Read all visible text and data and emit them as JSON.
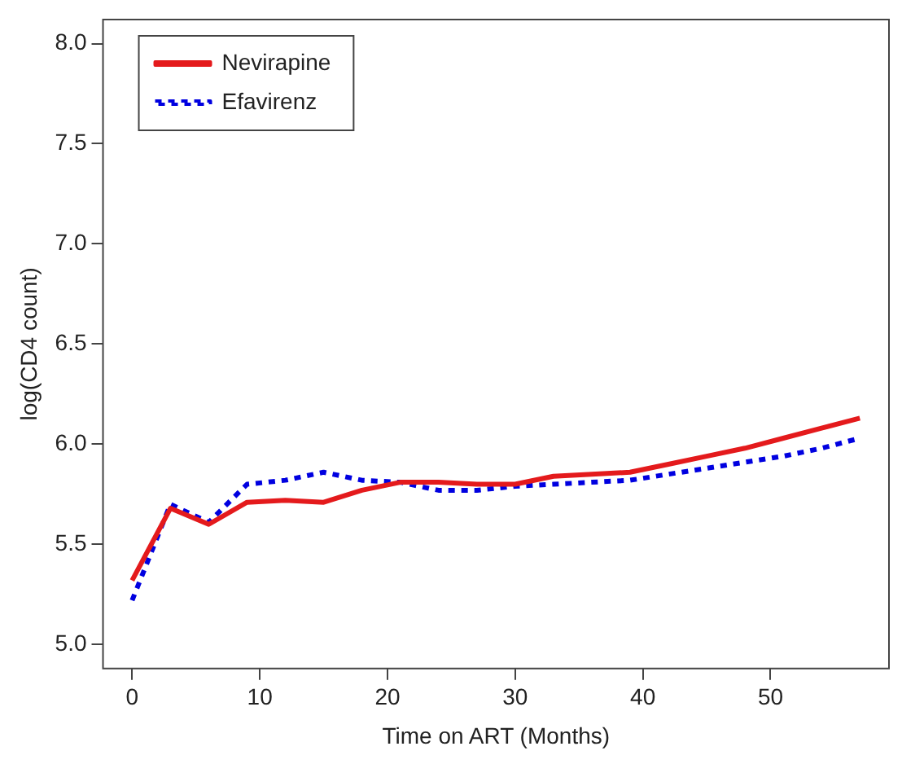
{
  "chart_data": {
    "type": "line",
    "xlabel": "Time on ART (Months)",
    "ylabel": "log(CD4 count)",
    "x": [
      0,
      3,
      6,
      9,
      12,
      15,
      18,
      21,
      24,
      27,
      30,
      33,
      36,
      39,
      42,
      45,
      48,
      51,
      54,
      57
    ],
    "series": [
      {
        "name": "Nevirapine",
        "color": "#e41a1c",
        "line_style": "solid",
        "values": [
          5.32,
          5.68,
          5.6,
          5.71,
          5.72,
          5.71,
          5.77,
          5.81,
          5.81,
          5.8,
          5.8,
          5.84,
          5.85,
          5.86,
          5.9,
          5.94,
          5.98,
          6.03,
          6.08,
          6.13
        ]
      },
      {
        "name": "Efavirenz",
        "color": "#0000e0",
        "line_style": "dotted",
        "values": [
          5.22,
          5.7,
          5.61,
          5.8,
          5.82,
          5.86,
          5.82,
          5.81,
          5.77,
          5.77,
          5.79,
          5.8,
          5.81,
          5.82,
          5.85,
          5.88,
          5.91,
          5.94,
          5.98,
          6.03
        ]
      }
    ],
    "xlim": [
      -2.28,
      59.28
    ],
    "ylim": [
      4.88,
      8.12
    ],
    "xticks": [
      0,
      10,
      20,
      30,
      40,
      50
    ],
    "yticks": [
      {
        "value": 5,
        "label": "5.0"
      },
      5.5,
      {
        "value": 6,
        "label": "6.0"
      },
      6.5,
      {
        "value": 7,
        "label": "7.0"
      },
      7.5,
      {
        "value": 8,
        "label": "8.0"
      }
    ],
    "grid": false,
    "legend": "top left",
    "marker": "none"
  }
}
